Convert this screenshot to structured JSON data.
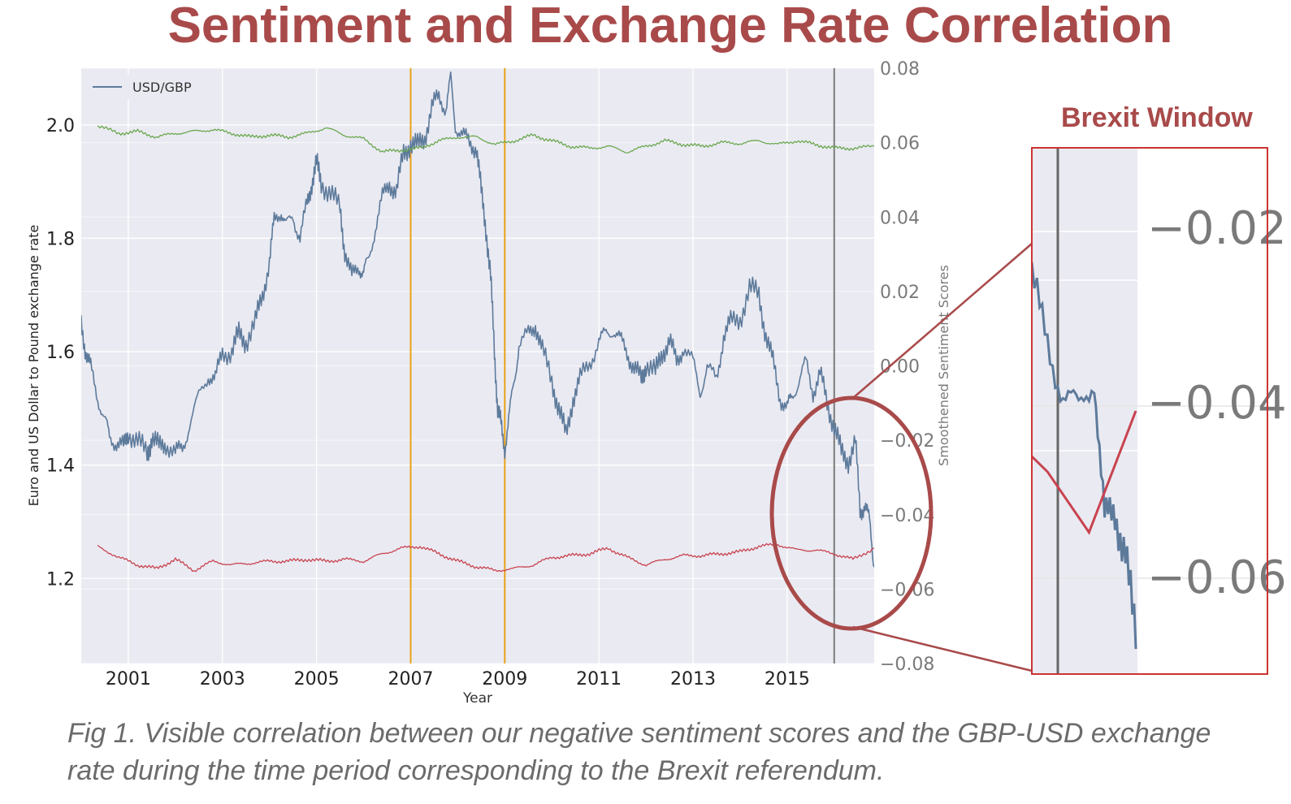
{
  "slide_title": "Sentiment and Exchange Rate Correlation",
  "zoom_label": "Brexit Window",
  "caption": "Fig 1. Visible correlation between our negative sentiment scores and the GBP-USD exchange rate during the time period corresponding to the Brexit referendum.",
  "colors": {
    "title": "#a94a4a",
    "usd_gbp": "#5d7a9b",
    "sentiment_green": "#6aa84f",
    "sentiment_red": "#c8434f",
    "event_line": "#e8a317",
    "brexit_line": "#7a7a7a",
    "plot_bg": "#eaeaf2",
    "highlight": "#a94a4a"
  },
  "chart_data": {
    "type": "line",
    "xlabel": "Year",
    "ylabel": "Euro and US Dollar to Pound exchange rate",
    "y2label": "Smoothened Sentiment Scores",
    "xlim": [
      2000.0,
      2016.85
    ],
    "ylim": [
      1.05,
      2.1
    ],
    "y2lim": [
      -0.08,
      0.08
    ],
    "x_ticks": [
      2001,
      2003,
      2005,
      2007,
      2009,
      2011,
      2013,
      2015
    ],
    "x_tick_labels": [
      "2001",
      "2003",
      "2005",
      "2007",
      "2009",
      "2011",
      "2013",
      "2015"
    ],
    "y_ticks": [
      1.2,
      1.4,
      1.6,
      1.8,
      2.0
    ],
    "y_tick_labels": [
      "1.2",
      "1.4",
      "1.6",
      "1.8",
      "2.0"
    ],
    "y2_ticks": [
      -0.08,
      -0.06,
      -0.04,
      -0.02,
      0.0,
      0.02,
      0.04,
      0.06,
      0.08
    ],
    "y2_tick_labels": [
      "−0.08",
      "−0.06",
      "−0.04",
      "−0.02",
      "0.00",
      "0.02",
      "0.04",
      "0.06",
      "0.08"
    ],
    "legend": {
      "position": "top-left",
      "entries": [
        "USD/GBP"
      ]
    },
    "grid": true,
    "vertical_lines": [
      2007.0,
      2009.0,
      2016.0
    ],
    "series": [
      {
        "name": "USD/GBP",
        "axis": "left",
        "x": [
          2000.0,
          2000.1,
          2000.2,
          2000.35,
          2000.5,
          2000.6,
          2000.75,
          2000.9,
          2001.0,
          2001.2,
          2001.4,
          2001.5,
          2001.65,
          2001.8,
          2002.0,
          2002.15,
          2002.3,
          2002.5,
          2002.7,
          2002.85,
          2003.0,
          2003.2,
          2003.35,
          2003.5,
          2003.7,
          2003.85,
          2004.0,
          2004.1,
          2004.25,
          2004.35,
          2004.5,
          2004.65,
          2004.8,
          2004.9,
          2005.0,
          2005.1,
          2005.3,
          2005.5,
          2005.6,
          2005.75,
          2005.9,
          2006.0,
          2006.1,
          2006.25,
          2006.4,
          2006.55,
          2006.7,
          2006.85,
          2007.0,
          2007.15,
          2007.3,
          2007.45,
          2007.6,
          2007.75,
          2007.85,
          2007.95,
          2008.1,
          2008.25,
          2008.4,
          2008.5,
          2008.6,
          2008.7,
          2008.78,
          2008.85,
          2008.92,
          2009.0,
          2009.1,
          2009.2,
          2009.3,
          2009.5,
          2009.65,
          2009.8,
          2010.0,
          2010.15,
          2010.3,
          2010.45,
          2010.6,
          2010.8,
          2011.0,
          2011.15,
          2011.3,
          2011.45,
          2011.6,
          2011.75,
          2011.9,
          2012.0,
          2012.2,
          2012.35,
          2012.5,
          2012.65,
          2012.8,
          2013.0,
          2013.15,
          2013.3,
          2013.5,
          2013.65,
          2013.8,
          2014.0,
          2014.2,
          2014.4,
          2014.55,
          2014.7,
          2014.85,
          2015.0,
          2015.1,
          2015.25,
          2015.4,
          2015.55,
          2015.7,
          2015.85,
          2016.0,
          2016.15,
          2016.3,
          2016.45,
          2016.55,
          2016.65,
          2016.75,
          2016.85
        ],
        "values": [
          1.65,
          1.6,
          1.57,
          1.52,
          1.48,
          1.45,
          1.44,
          1.43,
          1.46,
          1.44,
          1.42,
          1.45,
          1.43,
          1.44,
          1.42,
          1.43,
          1.47,
          1.52,
          1.56,
          1.55,
          1.6,
          1.6,
          1.63,
          1.62,
          1.65,
          1.7,
          1.76,
          1.83,
          1.85,
          1.82,
          1.84,
          1.8,
          1.86,
          1.9,
          1.93,
          1.9,
          1.88,
          1.85,
          1.78,
          1.73,
          1.75,
          1.74,
          1.76,
          1.82,
          1.87,
          1.9,
          1.88,
          1.95,
          1.97,
          1.96,
          1.98,
          2.03,
          2.05,
          2.03,
          2.08,
          2.0,
          1.98,
          1.97,
          1.96,
          1.88,
          1.82,
          1.73,
          1.6,
          1.5,
          1.47,
          1.43,
          1.49,
          1.55,
          1.61,
          1.63,
          1.65,
          1.6,
          1.55,
          1.5,
          1.45,
          1.52,
          1.55,
          1.58,
          1.62,
          1.63,
          1.64,
          1.62,
          1.6,
          1.57,
          1.55,
          1.58,
          1.56,
          1.6,
          1.62,
          1.58,
          1.61,
          1.58,
          1.53,
          1.57,
          1.55,
          1.63,
          1.65,
          1.66,
          1.71,
          1.7,
          1.63,
          1.58,
          1.52,
          1.5,
          1.52,
          1.55,
          1.58,
          1.53,
          1.56,
          1.51,
          1.47,
          1.42,
          1.41,
          1.44,
          1.32,
          1.33,
          1.3,
          1.22
        ]
      },
      {
        "name": "",
        "axis": "right",
        "x": [
          2000.35,
          2000.8,
          2001.2,
          2001.6,
          2002.0,
          2002.4,
          2002.8,
          2003.2,
          2003.6,
          2004.0,
          2004.4,
          2004.8,
          2005.2,
          2005.6,
          2006.0,
          2006.4,
          2006.8,
          2007.2,
          2007.6,
          2008.0,
          2008.4,
          2008.8,
          2009.2,
          2009.6,
          2010.0,
          2010.4,
          2010.8,
          2011.2,
          2011.6,
          2012.0,
          2012.4,
          2012.8,
          2013.2,
          2013.6,
          2014.0,
          2014.4,
          2014.8,
          2015.2,
          2015.6,
          2016.0,
          2016.4,
          2016.85
        ],
        "values": [
          0.0645,
          0.0625,
          0.063,
          0.0615,
          0.0625,
          0.063,
          0.0635,
          0.0625,
          0.0615,
          0.062,
          0.0615,
          0.0625,
          0.064,
          0.062,
          0.061,
          0.0575,
          0.058,
          0.0585,
          0.0605,
          0.0615,
          0.0615,
          0.0595,
          0.0605,
          0.062,
          0.0605,
          0.059,
          0.0585,
          0.059,
          0.0575,
          0.059,
          0.0605,
          0.0595,
          0.059,
          0.06,
          0.0598,
          0.0605,
          0.0595,
          0.0605,
          0.0595,
          0.0585,
          0.0585,
          0.059
        ]
      },
      {
        "name": "",
        "axis": "right",
        "x": [
          2000.35,
          2000.8,
          2001.2,
          2001.6,
          2002.0,
          2002.4,
          2002.8,
          2003.2,
          2003.6,
          2004.0,
          2004.4,
          2004.8,
          2005.2,
          2005.6,
          2006.0,
          2006.4,
          2006.8,
          2007.2,
          2007.6,
          2008.0,
          2008.4,
          2008.8,
          2009.2,
          2009.6,
          2010.0,
          2010.4,
          2010.8,
          2011.2,
          2011.6,
          2012.0,
          2012.4,
          2012.8,
          2013.2,
          2013.6,
          2014.0,
          2014.4,
          2014.8,
          2015.2,
          2015.6,
          2016.0,
          2016.4,
          2016.85
        ],
        "values": [
          -0.0485,
          -0.0515,
          -0.0535,
          -0.0545,
          -0.052,
          -0.055,
          -0.0525,
          -0.0535,
          -0.053,
          -0.0525,
          -0.0525,
          -0.052,
          -0.0525,
          -0.052,
          -0.0525,
          -0.0505,
          -0.049,
          -0.0485,
          -0.0505,
          -0.0525,
          -0.054,
          -0.055,
          -0.0545,
          -0.0535,
          -0.0515,
          -0.051,
          -0.0505,
          -0.049,
          -0.0515,
          -0.0535,
          -0.052,
          -0.051,
          -0.051,
          -0.0505,
          -0.05,
          -0.0485,
          -0.048,
          -0.0495,
          -0.0495,
          -0.0505,
          -0.052,
          -0.049
        ]
      }
    ]
  },
  "zoom_inset": {
    "tick_labels": [
      "−0.02",
      "−0.04",
      "−0.06"
    ]
  }
}
